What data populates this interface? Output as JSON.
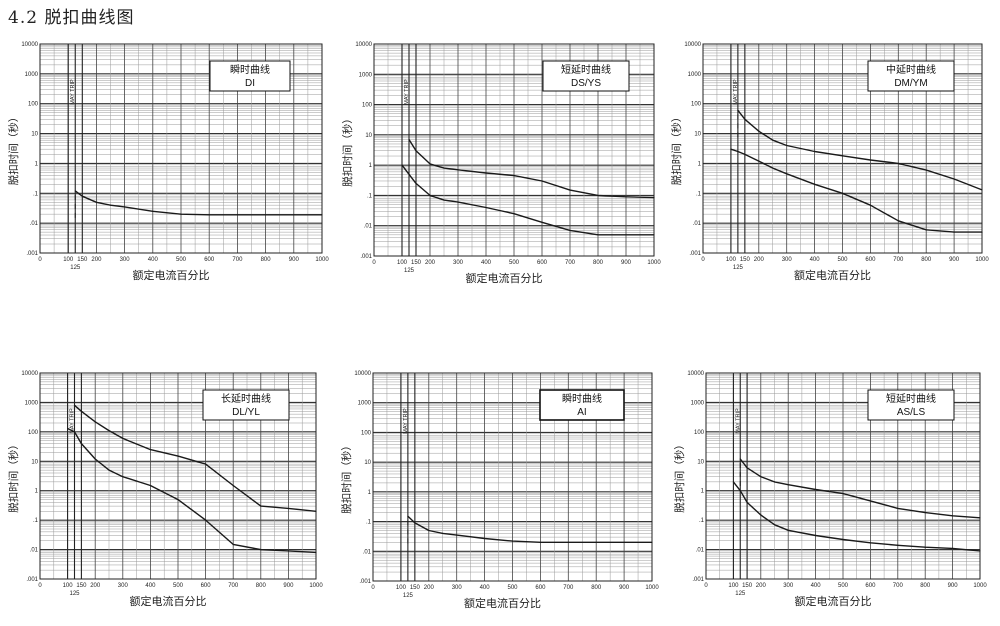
{
  "section_heading": "4.2 脱扣曲线图",
  "common": {
    "x_axis_title": "额定电流百分比",
    "y_axis_title": "脱扣时间（秒）",
    "x_tick_labels": [
      "0",
      "100",
      "150",
      "200",
      "300",
      "400",
      "500",
      "600",
      "700",
      "800",
      "900",
      "1000"
    ],
    "x_extra_label": "125",
    "y_tick_labels": [
      ".001",
      ".01",
      ".1",
      "1",
      "10",
      "100",
      "1000",
      "10000"
    ],
    "marker_text": "MAY TRIP"
  },
  "chart_data": [
    {
      "type": "line",
      "title": "瞬时曲线",
      "subtitle": "DI",
      "xlabel": "额定电流百分比",
      "ylabel": "脱扣时间（秒）",
      "xlim": [
        0,
        1000
      ],
      "ylim": [
        0.001,
        10000
      ],
      "y_scale": "log",
      "grid": true,
      "series": [
        {
          "x": [
            125,
            150,
            200,
            250,
            300,
            400,
            500,
            600,
            700,
            800,
            900,
            1000
          ],
          "y": [
            0.12,
            0.08,
            0.05,
            0.04,
            0.035,
            0.025,
            0.02,
            0.019,
            0.019,
            0.019,
            0.019,
            0.019
          ]
        }
      ]
    },
    {
      "type": "line",
      "title": "短延时曲线",
      "subtitle": "DS/YS",
      "xlabel": "额定电流百分比",
      "ylabel": "脱扣时间（秒）",
      "xlim": [
        0,
        1000
      ],
      "ylim": [
        0.001,
        10000
      ],
      "y_scale": "log",
      "grid": true,
      "series": [
        {
          "x": [
            125,
            150,
            200,
            250,
            300,
            400,
            500,
            600,
            700,
            800,
            900,
            1000
          ],
          "y": [
            7,
            3,
            1.1,
            0.8,
            0.7,
            0.55,
            0.45,
            0.3,
            0.15,
            0.1,
            0.09,
            0.085
          ]
        },
        {
          "x": [
            100,
            125,
            150,
            200,
            250,
            300,
            400,
            500,
            600,
            700,
            800,
            900,
            1000
          ],
          "y": [
            1,
            0.5,
            0.25,
            0.1,
            0.07,
            0.06,
            0.04,
            0.025,
            0.013,
            0.007,
            0.005,
            0.005,
            0.005
          ]
        }
      ]
    },
    {
      "type": "line",
      "title": "中延时曲线",
      "subtitle": "DM/YM",
      "xlabel": "额定电流百分比",
      "ylabel": "脱扣时间（秒）",
      "xlim": [
        0,
        1000
      ],
      "ylim": [
        0.001,
        10000
      ],
      "y_scale": "log",
      "grid": true,
      "series": [
        {
          "x": [
            125,
            150,
            200,
            250,
            300,
            400,
            500,
            600,
            700,
            800,
            900,
            1000
          ],
          "y": [
            60,
            30,
            12,
            6,
            4,
            2.5,
            1.8,
            1.3,
            1,
            0.6,
            0.3,
            0.13
          ]
        },
        {
          "x": [
            100,
            125,
            150,
            200,
            250,
            300,
            400,
            500,
            600,
            700,
            800,
            900,
            1000
          ],
          "y": [
            3,
            2.5,
            2,
            1.2,
            0.7,
            0.45,
            0.2,
            0.1,
            0.04,
            0.012,
            0.006,
            0.005,
            0.005
          ]
        }
      ]
    },
    {
      "type": "line",
      "title": "长延时曲线",
      "subtitle": "DL/YL",
      "xlabel": "额定电流百分比",
      "ylabel": "脱扣时间（秒）",
      "xlim": [
        0,
        1000
      ],
      "ylim": [
        0.001,
        10000
      ],
      "y_scale": "log",
      "grid": true,
      "series": [
        {
          "x": [
            125,
            150,
            200,
            250,
            300,
            400,
            500,
            600,
            700,
            800,
            900,
            1000
          ],
          "y": [
            800,
            500,
            220,
            110,
            60,
            25,
            15,
            8,
            1.5,
            0.3,
            0.25,
            0.2
          ]
        },
        {
          "x": [
            100,
            125,
            150,
            200,
            250,
            300,
            400,
            500,
            600,
            700,
            800,
            900,
            1000
          ],
          "y": [
            130,
            100,
            40,
            12,
            5,
            3,
            1.5,
            0.5,
            0.1,
            0.015,
            0.01,
            0.009,
            0.008
          ]
        }
      ]
    },
    {
      "type": "line",
      "title": "瞬时曲线",
      "subtitle": "AI",
      "xlabel": "额定电流百分比",
      "ylabel": "脱扣时间（秒）",
      "xlim": [
        0,
        1000
      ],
      "ylim": [
        0.001,
        10000
      ],
      "y_scale": "log",
      "grid": true,
      "series": [
        {
          "x": [
            125,
            150,
            200,
            250,
            300,
            400,
            500,
            600,
            700,
            800,
            900,
            1000
          ],
          "y": [
            0.15,
            0.09,
            0.05,
            0.04,
            0.035,
            0.027,
            0.022,
            0.02,
            0.02,
            0.02,
            0.02,
            0.02
          ]
        }
      ]
    },
    {
      "type": "line",
      "title": "短延时曲线",
      "subtitle": "AS/LS",
      "xlabel": "额定电流百分比",
      "ylabel": "脱扣时间（秒）",
      "xlim": [
        0,
        1000
      ],
      "ylim": [
        0.001,
        10000
      ],
      "y_scale": "log",
      "grid": true,
      "series": [
        {
          "x": [
            125,
            150,
            200,
            250,
            300,
            400,
            500,
            600,
            700,
            800,
            900,
            1000
          ],
          "y": [
            12,
            6,
            3,
            2,
            1.6,
            1.1,
            0.8,
            0.45,
            0.25,
            0.18,
            0.14,
            0.12
          ]
        },
        {
          "x": [
            100,
            125,
            150,
            200,
            250,
            300,
            400,
            500,
            600,
            700,
            800,
            900,
            1000
          ],
          "y": [
            2,
            1,
            0.4,
            0.15,
            0.07,
            0.045,
            0.03,
            0.022,
            0.017,
            0.014,
            0.012,
            0.011,
            0.009
          ]
        }
      ]
    }
  ]
}
